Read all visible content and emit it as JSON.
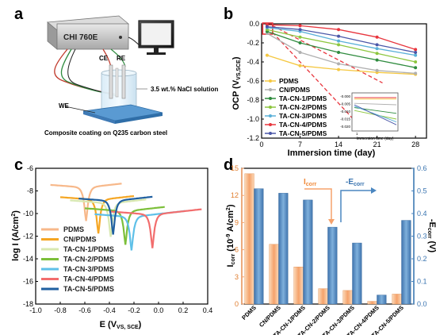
{
  "panels": {
    "a": {
      "label": "a",
      "instrument": "CHI 760E",
      "ce": "CE",
      "re": "RE",
      "we": "WE",
      "solution": "3.5 wt.% NaCl solution",
      "caption": "Composite coating on Q235 carbon steel"
    },
    "b": {
      "label": "b"
    },
    "c": {
      "label": "c"
    },
    "d": {
      "label": "d"
    }
  },
  "colors": {
    "PDMS": "#f5c842",
    "CN/PDMS": "#b0b0b0",
    "TA-CN-1/PDMS": "#2e8b3e",
    "TA-CN-2/PDMS": "#8dc63f",
    "TA-CN-3/PDMS": "#5ab0d8",
    "TA-CN-4/PDMS": "#e8363e",
    "TA-CN-5/PDMS": "#4a57a8"
  },
  "chart_data": [
    {
      "type": "line",
      "panel": "b",
      "xlabel": "Immersion time (day)",
      "ylabel": "OCP (V",
      "ylabel_sub": "VS,SCE",
      "ylabel_end": ")",
      "xlim": [
        0,
        30
      ],
      "ylim": [
        -1.2,
        0.0
      ],
      "xticks": [
        0,
        7,
        14,
        21,
        28
      ],
      "yticks": [
        0.0,
        -0.2,
        -0.4,
        -0.6,
        -0.8,
        -1.0,
        -1.2
      ],
      "x": [
        1,
        7,
        14,
        21,
        28
      ],
      "series": [
        {
          "name": "PDMS",
          "color": "#f5c842",
          "values": [
            -0.33,
            -0.44,
            -0.48,
            -0.51,
            -0.53
          ]
        },
        {
          "name": "CN/PDMS",
          "color": "#b0b0b0",
          "values": [
            -0.1,
            -0.3,
            -0.42,
            -0.49,
            -0.52
          ]
        },
        {
          "name": "TA-CN-1/PDMS",
          "color": "#2e8b3e",
          "values": [
            -0.08,
            -0.2,
            -0.3,
            -0.38,
            -0.46
          ]
        },
        {
          "name": "TA-CN-2/PDMS",
          "color": "#8dc63f",
          "values": [
            -0.06,
            -0.14,
            -0.22,
            -0.31,
            -0.4
          ]
        },
        {
          "name": "TA-CN-3/PDMS",
          "color": "#5ab0d8",
          "values": [
            -0.04,
            -0.08,
            -0.18,
            -0.26,
            -0.33
          ]
        },
        {
          "name": "TA-CN-4/PDMS",
          "color": "#e8363e",
          "values": [
            -0.01,
            -0.02,
            -0.06,
            -0.14,
            -0.27
          ]
        },
        {
          "name": "TA-CN-5/PDMS",
          "color": "#4a57a8",
          "values": [
            -0.03,
            -0.06,
            -0.13,
            -0.22,
            -0.3
          ]
        }
      ],
      "inset": {
        "xlabel": "Immersion time (day)",
        "xticks": [
          "1"
        ],
        "yticks": [
          "-0.000",
          "-0.005",
          "-0.010",
          "-0.015",
          "-0.020"
        ]
      }
    },
    {
      "type": "line",
      "panel": "c",
      "xlabel": "E (V",
      "xlabel_sub": "VS, SCE",
      "xlabel_end": ")",
      "ylabel": "log I (A/cm",
      "ylabel_sup": "2",
      "ylabel_end": ")",
      "xlim": [
        -1.0,
        0.4
      ],
      "ylim": [
        -18,
        -6
      ],
      "xticks": [
        "-1.0",
        "-0.8",
        "-0.6",
        "-0.4",
        "-0.2",
        "0.0",
        "0.2",
        "0.4"
      ],
      "yticks": [
        "-6",
        "-8",
        "-10",
        "-12",
        "-14",
        "-16",
        "-18"
      ],
      "series": [
        {
          "name": "PDMS",
          "color": "#f7b88a",
          "ecorr": -0.59,
          "icorr": -8.2,
          "xmin": -0.88,
          "xmax": -0.3
        },
        {
          "name": "CN/PDMS",
          "color": "#f5a623",
          "ecorr": -0.49,
          "icorr": -9.3,
          "xmin": -0.8,
          "xmax": -0.2
        },
        {
          "name": "TA-CN-1/PDMS",
          "color": "#d8e8b0",
          "ecorr": -0.39,
          "icorr": -9.6,
          "xmin": -0.72,
          "xmax": -0.1
        },
        {
          "name": "TA-CN-2/PDMS",
          "color": "#7cbf3a",
          "ecorr": -0.27,
          "icorr": -10.3,
          "xmin": -0.6,
          "xmax": 0.05
        },
        {
          "name": "TA-CN-3/PDMS",
          "color": "#5ec0e8",
          "ecorr": -0.22,
          "icorr": -10.8,
          "xmin": -0.52,
          "xmax": 0.22
        },
        {
          "name": "TA-CN-4/PDMS",
          "color": "#f26d6d",
          "ecorr": -0.05,
          "icorr": -10.6,
          "xmin": -0.4,
          "xmax": 0.35
        },
        {
          "name": "TA-CN-5/PDMS",
          "color": "#1f5fa0",
          "ecorr": -0.37,
          "icorr": -9.4,
          "xmin": -0.65,
          "xmax": -0.05
        }
      ]
    },
    {
      "type": "bar",
      "panel": "d",
      "categories": [
        "PDMS",
        "CN/PDMS",
        "TA-CN-1/PDMS",
        "TA-CN-2/PDMS",
        "TA-CN-3/PDMS",
        "TA-CN-4/PDMS",
        "TA-CN-5/PDMS"
      ],
      "ylabel_left": "I",
      "ylabel_left_sub": "corr",
      "ylabel_left_end": " (10",
      "ylabel_left_sup": "-9",
      "ylabel_left_tail": " A/cm",
      "ylabel_left_sup2": "2",
      "ylabel_left_close": ")",
      "ylabel_right": "-E",
      "ylabel_right_sub": "corr",
      "ylabel_right_end": " (V)",
      "ylim_left": [
        0,
        15
      ],
      "ylim_right": [
        0,
        0.6
      ],
      "yticks_left": [
        "0",
        "3",
        "6",
        "9",
        "12",
        "15"
      ],
      "yticks_right": [
        "0.0",
        "0.1",
        "0.2",
        "0.3",
        "0.4",
        "0.5",
        "0.6"
      ],
      "series": [
        {
          "name": "Icorr",
          "color": "#f5a26b",
          "axis": "left",
          "values": [
            14.4,
            6.6,
            4.1,
            1.7,
            1.5,
            0.3,
            1.1
          ]
        },
        {
          "name": "-Ecorr",
          "color": "#4a86c0",
          "axis": "right",
          "values": [
            0.51,
            0.49,
            0.46,
            0.34,
            0.27,
            0.04,
            0.37
          ]
        }
      ],
      "annotation_left": "I",
      "annotation_left_sub": "corr",
      "annotation_right": "-E",
      "annotation_right_sub": "corr"
    }
  ]
}
